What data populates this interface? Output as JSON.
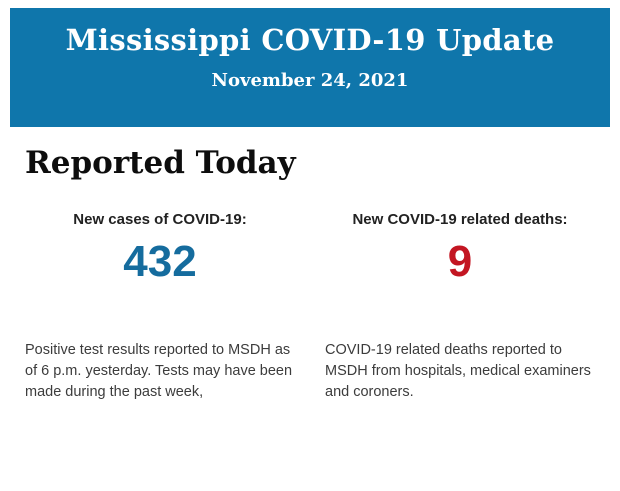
{
  "banner": {
    "title": "Mississippi COVID-19 Update",
    "date": "November 24, 2021",
    "background_color": "#0f76ab",
    "text_color": "#ffffff"
  },
  "section": {
    "heading": "Reported Today"
  },
  "stats": [
    {
      "label": "New cases of COVID-19:",
      "value": "432",
      "value_color": "#156c9e",
      "description": "Positive test results reported to MSDH as of 6 p.m. yesterday. Tests may have been made during the past week,"
    },
    {
      "label": "New COVID-19 related deaths:",
      "value": "9",
      "value_color": "#c31622",
      "description": "COVID-19 related deaths reported to MSDH from hospitals, medical examiners and coroners."
    }
  ]
}
